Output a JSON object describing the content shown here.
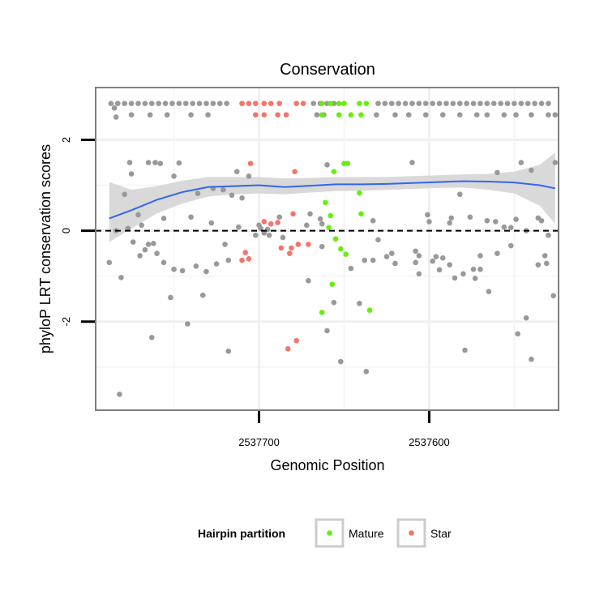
{
  "chart_data": {
    "type": "scatter",
    "title": "Conservation",
    "xlabel": "Genomic Position",
    "ylabel": "phyloP LRT conservation scores",
    "x_reversed": true,
    "xlim": [
      2537796,
      2537524
    ],
    "ylim": [
      -3.95,
      3.15
    ],
    "x_ticks": [
      2537700,
      2537600
    ],
    "x_tick_labels": [
      "2537700",
      "2537600"
    ],
    "y_ticks": [
      -2,
      0,
      2
    ],
    "y_tick_labels": [
      "-2",
      "0",
      "2"
    ],
    "grid": true,
    "reference_line": {
      "y": 0,
      "style": "dashed"
    },
    "legend": {
      "title": "Hairpin partition",
      "position": "bottom",
      "entries": [
        {
          "label": "Mature",
          "color": "#66ee11"
        },
        {
          "label": "Star",
          "color": "#f2766b"
        }
      ]
    },
    "colors": {
      "other": "#999999",
      "Mature": "#66ee11",
      "Star": "#f2766b",
      "smooth": "#3366ee",
      "ribbon": "#d7d7d7",
      "panel_border": "#7f7f7f"
    },
    "series": [
      {
        "name": "Mature",
        "color": "#66ee11",
        "points": [
          [
            2537663,
            2.8
          ],
          [
            2537658,
            2.8
          ],
          [
            2537653,
            2.8
          ],
          [
            2537650,
            2.8
          ],
          [
            2537641,
            2.8
          ],
          [
            2537637,
            2.8
          ],
          [
            2537663,
            2.55
          ],
          [
            2537653,
            2.55
          ],
          [
            2537646,
            2.55
          ],
          [
            2537640,
            2.55
          ],
          [
            2537650,
            1.48
          ],
          [
            2537648,
            1.48
          ],
          [
            2537656,
            1.3
          ],
          [
            2537641,
            0.83
          ],
          [
            2537661,
            0.62
          ],
          [
            2537658,
            0.33
          ],
          [
            2537640,
            0.37
          ],
          [
            2537659,
            0.07
          ],
          [
            2537655,
            -0.18
          ],
          [
            2537652,
            -0.4
          ],
          [
            2537649,
            -0.52
          ],
          [
            2537657,
            -1.18
          ],
          [
            2537635,
            -1.75
          ],
          [
            2537663,
            -1.8
          ]
        ]
      },
      {
        "name": "Star",
        "color": "#f2766b",
        "points": [
          [
            2537710,
            2.8
          ],
          [
            2537706,
            2.8
          ],
          [
            2537702,
            2.8
          ],
          [
            2537697,
            2.8
          ],
          [
            2537693,
            2.8
          ],
          [
            2537688,
            2.8
          ],
          [
            2537678,
            2.8
          ],
          [
            2537674,
            2.8
          ],
          [
            2537702,
            2.55
          ],
          [
            2537697,
            2.55
          ],
          [
            2537689,
            2.55
          ],
          [
            2537684,
            2.55
          ],
          [
            2537705,
            1.48
          ],
          [
            2537679,
            1.3
          ],
          [
            2537680,
            0.37
          ],
          [
            2537693,
            0.15
          ],
          [
            2537689,
            0.18
          ],
          [
            2537697,
            0.2
          ],
          [
            2537671,
            -0.3
          ],
          [
            2537677,
            -0.3
          ],
          [
            2537681,
            -0.38
          ],
          [
            2537687,
            -0.38
          ],
          [
            2537682,
            -0.5
          ],
          [
            2537708,
            -0.48
          ],
          [
            2537706,
            -0.62
          ],
          [
            2537710,
            -0.65
          ],
          [
            2537678,
            -2.42
          ],
          [
            2537683,
            -2.6
          ]
        ]
      },
      {
        "name": "",
        "color": "#999999",
        "points": [
          [
            2537787,
            2.8
          ],
          [
            2537783,
            2.8
          ],
          [
            2537779,
            2.8
          ],
          [
            2537775,
            2.8
          ],
          [
            2537771,
            2.8
          ],
          [
            2537767,
            2.8
          ],
          [
            2537763,
            2.8
          ],
          [
            2537759,
            2.8
          ],
          [
            2537755,
            2.8
          ],
          [
            2537751,
            2.8
          ],
          [
            2537747,
            2.8
          ],
          [
            2537743,
            2.8
          ],
          [
            2537739,
            2.8
          ],
          [
            2537735,
            2.8
          ],
          [
            2537731,
            2.8
          ],
          [
            2537727,
            2.8
          ],
          [
            2537723,
            2.8
          ],
          [
            2537719,
            2.8
          ],
          [
            2537668,
            2.8
          ],
          [
            2537664,
            2.8
          ],
          [
            2537660,
            2.8
          ],
          [
            2537656,
            2.8
          ],
          [
            2537630,
            2.8
          ],
          [
            2537626,
            2.8
          ],
          [
            2537622,
            2.8
          ],
          [
            2537618,
            2.8
          ],
          [
            2537614,
            2.8
          ],
          [
            2537610,
            2.8
          ],
          [
            2537606,
            2.8
          ],
          [
            2537602,
            2.8
          ],
          [
            2537598,
            2.8
          ],
          [
            2537594,
            2.8
          ],
          [
            2537590,
            2.8
          ],
          [
            2537586,
            2.8
          ],
          [
            2537582,
            2.8
          ],
          [
            2537578,
            2.8
          ],
          [
            2537574,
            2.8
          ],
          [
            2537570,
            2.8
          ],
          [
            2537566,
            2.8
          ],
          [
            2537562,
            2.8
          ],
          [
            2537558,
            2.8
          ],
          [
            2537554,
            2.8
          ],
          [
            2537550,
            2.8
          ],
          [
            2537546,
            2.8
          ],
          [
            2537542,
            2.8
          ],
          [
            2537538,
            2.8
          ],
          [
            2537534,
            2.8
          ],
          [
            2537530,
            2.8
          ],
          [
            2537784,
            2.5
          ],
          [
            2537775,
            2.55
          ],
          [
            2537764,
            2.55
          ],
          [
            2537754,
            2.55
          ],
          [
            2537740,
            2.55
          ],
          [
            2537730,
            2.55
          ],
          [
            2537666,
            2.55
          ],
          [
            2537662,
            2.55
          ],
          [
            2537631,
            2.55
          ],
          [
            2537620,
            2.55
          ],
          [
            2537612,
            2.55
          ],
          [
            2537602,
            2.55
          ],
          [
            2537592,
            2.55
          ],
          [
            2537582,
            2.55
          ],
          [
            2537572,
            2.55
          ],
          [
            2537566,
            2.55
          ],
          [
            2537556,
            2.55
          ],
          [
            2537549,
            2.55
          ],
          [
            2537540,
            2.55
          ],
          [
            2537530,
            2.55
          ],
          [
            2537526,
            2.55
          ],
          [
            2537785,
            2.7
          ],
          [
            2537782,
            -3.6
          ],
          [
            2537779,
            0.8
          ],
          [
            2537776,
            1.5
          ],
          [
            2537775,
            1.25
          ],
          [
            2537771,
            0.35
          ],
          [
            2537769,
            0.12
          ],
          [
            2537765,
            1.5
          ],
          [
            2537761,
            1.5
          ],
          [
            2537758,
            1.48
          ],
          [
            2537756,
            0.27
          ],
          [
            2537750,
            1.2
          ],
          [
            2537747,
            1.49
          ],
          [
            2537740,
            0.3
          ],
          [
            2537736,
            0.82
          ],
          [
            2537728,
            0.17
          ],
          [
            2537727,
            0.93
          ],
          [
            2537721,
            0.9
          ],
          [
            2537713,
            1.3
          ],
          [
            2537706,
            1.2
          ],
          [
            2537720,
            -0.3
          ],
          [
            2537716,
            0.78
          ],
          [
            2537710,
            0.72
          ],
          [
            2537699,
            0.05
          ],
          [
            2537695,
            0.03
          ],
          [
            2537702,
            -0.1
          ],
          [
            2537697,
            -0.05
          ],
          [
            2537700,
            0.12
          ],
          [
            2537688,
            0.3
          ],
          [
            2537686,
            -0.15
          ],
          [
            2537672,
            0.12
          ],
          [
            2537670,
            0.37
          ],
          [
            2537663,
            -0.35
          ],
          [
            2537660,
            1.45
          ],
          [
            2537664,
            0.26
          ],
          [
            2537646,
            -0.83
          ],
          [
            2537633,
            -0.65
          ],
          [
            2537638,
            -0.65
          ],
          [
            2537625,
            -0.57
          ],
          [
            2537622,
            -0.5
          ],
          [
            2537610,
            1.5
          ],
          [
            2537606,
            -0.55
          ],
          [
            2537601,
            0.35
          ],
          [
            2537600,
            0.2
          ],
          [
            2537598,
            -0.67
          ],
          [
            2537596,
            -0.57
          ],
          [
            2537594,
            -0.86
          ],
          [
            2537592,
            -0.6
          ],
          [
            2537588,
            -0.75
          ],
          [
            2537585,
            -1.04
          ],
          [
            2537588,
            0.17
          ],
          [
            2537587,
            0.28
          ],
          [
            2537582,
            0.8
          ],
          [
            2537580,
            -0.95
          ],
          [
            2537576,
            0.3
          ],
          [
            2537574,
            -0.85
          ],
          [
            2537570,
            -0.55
          ],
          [
            2537566,
            0.22
          ],
          [
            2537560,
            1.28
          ],
          [
            2537561,
            0.2
          ],
          [
            2537556,
            0.08
          ],
          [
            2537552,
            0.07
          ],
          [
            2537546,
            1.5
          ],
          [
            2537543,
            0.0
          ],
          [
            2537540,
            1.33
          ],
          [
            2537536,
            0.28
          ],
          [
            2537534,
            0.22
          ],
          [
            2537532,
            -0.55
          ],
          [
            2537531,
            -0.72
          ],
          [
            2537530,
            -0.1
          ],
          [
            2537526,
            1.5
          ],
          [
            2537527,
            -1.43
          ],
          [
            2537788,
            -0.7
          ],
          [
            2537784,
            0.0
          ],
          [
            2537781,
            -1.03
          ],
          [
            2537777,
            0.05
          ],
          [
            2537774,
            -0.25
          ],
          [
            2537770,
            -0.55
          ],
          [
            2537767,
            -0.42
          ],
          [
            2537765,
            -0.3
          ],
          [
            2537762,
            -0.28
          ],
          [
            2537760,
            -0.5
          ],
          [
            2537756,
            -0.7
          ],
          [
            2537750,
            -0.85
          ],
          [
            2537745,
            -0.88
          ],
          [
            2537737,
            -0.78
          ],
          [
            2537731,
            -0.9
          ],
          [
            2537725,
            -0.73
          ],
          [
            2537718,
            -0.65
          ],
          [
            2537712,
            0.08
          ],
          [
            2537763,
            -2.35
          ],
          [
            2537742,
            -2.05
          ],
          [
            2537752,
            -1.47
          ],
          [
            2537733,
            -1.42
          ],
          [
            2537718,
            -2.65
          ],
          [
            2537694,
            -0.1
          ],
          [
            2537671,
            -1.1
          ],
          [
            2537663,
            0.15
          ],
          [
            2537660,
            -2.2
          ],
          [
            2537656,
            -1.58
          ],
          [
            2537652,
            -2.88
          ],
          [
            2537641,
            -1.6
          ],
          [
            2537637,
            -3.1
          ],
          [
            2537630,
            -0.2
          ],
          [
            2537633,
            0.22
          ],
          [
            2537620,
            -0.72
          ],
          [
            2537608,
            -0.45
          ],
          [
            2537608,
            -0.7
          ],
          [
            2537606,
            -0.95
          ],
          [
            2537579,
            -2.63
          ],
          [
            2537573,
            -1.05
          ],
          [
            2537570,
            -0.85
          ],
          [
            2537565,
            -1.34
          ],
          [
            2537548,
            -2.27
          ],
          [
            2537543,
            -1.92
          ],
          [
            2537540,
            -2.83
          ],
          [
            2537536,
            -0.75
          ],
          [
            2537560,
            -0.5
          ],
          [
            2537552,
            -0.33
          ],
          [
            2537549,
            0.25
          ]
        ]
      }
    ],
    "smooth_line": [
      [
        2537788,
        0.27
      ],
      [
        2537775,
        0.45
      ],
      [
        2537760,
        0.68
      ],
      [
        2537745,
        0.85
      ],
      [
        2537730,
        0.96
      ],
      [
        2537715,
        0.98
      ],
      [
        2537700,
        1.0
      ],
      [
        2537685,
        0.96
      ],
      [
        2537670,
        0.99
      ],
      [
        2537655,
        1.02
      ],
      [
        2537640,
        1.02
      ],
      [
        2537625,
        1.03
      ],
      [
        2537610,
        1.05
      ],
      [
        2537595,
        1.07
      ],
      [
        2537580,
        1.09
      ],
      [
        2537565,
        1.08
      ],
      [
        2537550,
        1.06
      ],
      [
        2537535,
        1.0
      ],
      [
        2537526,
        0.93
      ]
    ],
    "confidence_band": [
      [
        2537788,
        -0.25,
        1.07
      ],
      [
        2537775,
        0.05,
        0.9
      ],
      [
        2537760,
        0.38,
        0.98
      ],
      [
        2537745,
        0.6,
        1.1
      ],
      [
        2537730,
        0.75,
        1.18
      ],
      [
        2537715,
        0.8,
        1.18
      ],
      [
        2537700,
        0.82,
        1.18
      ],
      [
        2537685,
        0.8,
        1.15
      ],
      [
        2537670,
        0.84,
        1.16
      ],
      [
        2537655,
        0.87,
        1.18
      ],
      [
        2537640,
        0.88,
        1.18
      ],
      [
        2537625,
        0.9,
        1.18
      ],
      [
        2537610,
        0.92,
        1.2
      ],
      [
        2537595,
        0.94,
        1.22
      ],
      [
        2537580,
        0.95,
        1.24
      ],
      [
        2537565,
        0.9,
        1.25
      ],
      [
        2537550,
        0.82,
        1.3
      ],
      [
        2537535,
        0.55,
        1.45
      ],
      [
        2537526,
        0.15,
        1.72
      ]
    ]
  }
}
